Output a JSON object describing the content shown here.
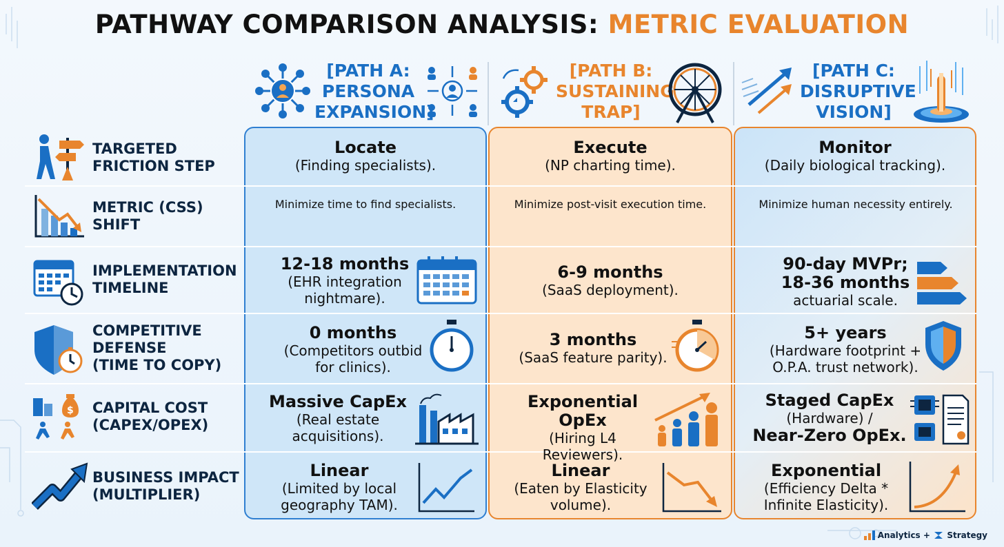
{
  "title": {
    "part1": "PATHWAY COMPARISON ANALYSIS:",
    "part2": "METRIC EVALUATION"
  },
  "colors": {
    "blue": "#1a6fc4",
    "orange": "#e8852d",
    "dark": "#0d2540"
  },
  "paths": [
    {
      "lines": [
        "[PATH A:",
        "PERSONA",
        "EXPANSION]"
      ],
      "icons": [
        "network-icon",
        "persona-icon"
      ]
    },
    {
      "lines": [
        "[PATH B:",
        "SUSTAINING",
        "TRAP]"
      ],
      "icons": [
        "gears-icon",
        "hamster-wheel-icon"
      ]
    },
    {
      "lines": [
        "[PATH C:",
        "DISRUPTIVE",
        "VISION]"
      ],
      "icons": [
        "rocket-arrows-icon",
        "portal-icon"
      ]
    }
  ],
  "rows": [
    {
      "label": [
        "TARGETED",
        "FRICTION STEP"
      ],
      "icon": "signpost-icon",
      "cells": [
        {
          "main": "Locate",
          "sub": "(Finding specialists)."
        },
        {
          "main": "Execute",
          "sub": "(NP charting time)."
        },
        {
          "main": "Monitor",
          "sub": "(Daily biological tracking)."
        }
      ]
    },
    {
      "label": [
        "METRIC (CSS)",
        "SHIFT"
      ],
      "icon": "declining-chart-icon",
      "cells": [
        {
          "main": "Minimize time to find specialists."
        },
        {
          "main": "Minimize post-visit execution time."
        },
        {
          "main": "Minimize human necessity entirely."
        }
      ]
    },
    {
      "label": [
        "IMPLEMENTATION",
        "TIMELINE"
      ],
      "icon": "calendar-clock-icon",
      "cells": [
        {
          "main": "12-18 months",
          "sub": "(EHR integration nightmare).",
          "icon": "calendar-icon"
        },
        {
          "main": "6-9 months",
          "sub": "(SaaS deployment)."
        },
        {
          "main": "90-day MVPr; 18-36 months",
          "sub": "actuarial scale.",
          "icon": "bar-arrows-icon"
        }
      ]
    },
    {
      "label": [
        "COMPETITIVE",
        "DEFENSE",
        "(TIME TO COPY)"
      ],
      "icon": "shield-timer-icon",
      "cells": [
        {
          "main": "0 months",
          "sub": "(Competitors outbid for clinics).",
          "icon": "stopwatch-icon"
        },
        {
          "main": "3 months",
          "sub": "(SaaS feature parity).",
          "icon": "stopwatch-icon"
        },
        {
          "main": "5+ years",
          "sub": "(Hardware footprint + O.P.A. trust network).",
          "icon": "shield-icon"
        }
      ]
    },
    {
      "label": [
        "CAPITAL COST",
        "(CAPEX/OPEX)"
      ],
      "icon": "money-runners-icon",
      "cells": [
        {
          "main": "Massive CapEx",
          "sub": "(Real estate acquisitions).",
          "icon": "factory-icon"
        },
        {
          "main": "Exponential OpEx",
          "sub": "(Hiring L4 Reviewers).",
          "icon": "people-growth-icon"
        },
        {
          "main": "Staged CapEx",
          "sub": "(Hardware) /",
          "main2": "Near-Zero OpEx.",
          "icon": "chip-document-icon"
        }
      ]
    },
    {
      "label": [
        "BUSINESS IMPACT",
        "(MULTIPLIER)"
      ],
      "icon": "rising-arrow-icon",
      "cells": [
        {
          "main": "Linear",
          "sub": "(Limited by local geography TAM).",
          "icon": "zigzag-up-chart-icon"
        },
        {
          "main": "Linear",
          "sub": "(Eaten by Elasticity volume).",
          "icon": "down-chart-icon"
        },
        {
          "main": "Exponential",
          "sub": "(Efficiency Delta * Infinite Elasticity).",
          "icon": "exponential-chart-icon"
        }
      ]
    }
  ],
  "brand": {
    "left": "Analytics +",
    "right": "Strategy"
  }
}
